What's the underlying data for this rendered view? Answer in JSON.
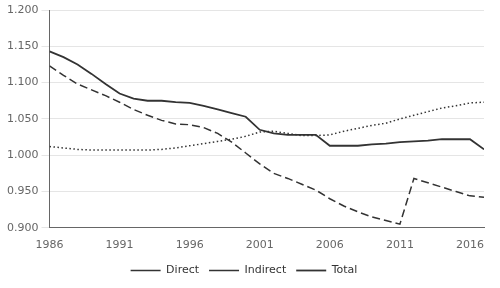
{
  "chart_data": {
    "type": "line",
    "x": [
      1986,
      1987,
      1988,
      1989,
      1990,
      1991,
      1992,
      1993,
      1994,
      1995,
      1996,
      1997,
      1998,
      1999,
      2000,
      2001,
      2002,
      2003,
      2004,
      2005,
      2006,
      2007,
      2008,
      2009,
      2010,
      2011,
      2012,
      2013,
      2014,
      2015,
      2016,
      2017
    ],
    "series": [
      {
        "name": "Direct",
        "color": "#333333",
        "line_style": "dashed",
        "values": [
          1.123,
          1.11,
          1.098,
          1.09,
          1.082,
          1.073,
          1.063,
          1.055,
          1.048,
          1.043,
          1.042,
          1.038,
          1.03,
          1.018,
          1.003,
          0.988,
          0.975,
          0.968,
          0.96,
          0.952,
          0.94,
          0.93,
          0.922,
          0.915,
          0.91,
          0.905,
          0.968,
          0.962,
          0.956,
          0.95,
          0.944,
          0.942
        ]
      },
      {
        "name": "Indirect",
        "color": "#333333",
        "line_style": "dotted",
        "values": [
          1.012,
          1.01,
          1.008,
          1.007,
          1.007,
          1.007,
          1.007,
          1.007,
          1.008,
          1.01,
          1.013,
          1.016,
          1.019,
          1.022,
          1.026,
          1.032,
          1.033,
          1.03,
          1.027,
          1.027,
          1.028,
          1.033,
          1.037,
          1.041,
          1.044,
          1.05,
          1.055,
          1.06,
          1.065,
          1.068,
          1.072,
          1.073
        ]
      },
      {
        "name": "Total",
        "color": "#333333",
        "line_style": "solid",
        "values": [
          1.143,
          1.135,
          1.125,
          1.112,
          1.098,
          1.085,
          1.078,
          1.075,
          1.075,
          1.073,
          1.072,
          1.068,
          1.063,
          1.058,
          1.053,
          1.035,
          1.03,
          1.028,
          1.028,
          1.028,
          1.013,
          1.013,
          1.013,
          1.015,
          1.016,
          1.018,
          1.019,
          1.02,
          1.022,
          1.022,
          1.022,
          1.008
        ]
      }
    ],
    "xlim": [
      1986,
      2017
    ],
    "xticks": [
      1986,
      1991,
      1996,
      2001,
      2006,
      2011,
      2016
    ],
    "ylim": [
      0.9,
      1.2
    ],
    "yticks": [
      {
        "value": 0.9,
        "label": "0.900"
      },
      {
        "value": 0.95,
        "label": "0.950"
      },
      {
        "value": 1.0,
        "label": "1.000"
      },
      {
        "value": 1.05,
        "label": "1.050"
      },
      {
        "value": 1.1,
        "label": "1.100"
      },
      {
        "value": 1.15,
        "label": "1.150"
      },
      {
        "value": 1.2,
        "label": "1.200"
      }
    ],
    "grid": "y",
    "legend": "bottom"
  }
}
